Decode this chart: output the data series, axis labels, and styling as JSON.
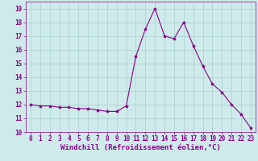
{
  "x": [
    0,
    1,
    2,
    3,
    4,
    5,
    6,
    7,
    8,
    9,
    10,
    11,
    12,
    13,
    14,
    15,
    16,
    17,
    18,
    19,
    20,
    21,
    22,
    23
  ],
  "y": [
    12.0,
    11.9,
    11.9,
    11.8,
    11.8,
    11.7,
    11.7,
    11.6,
    11.5,
    11.5,
    11.9,
    15.5,
    17.5,
    19.0,
    17.0,
    16.8,
    18.0,
    16.3,
    14.8,
    13.5,
    12.9,
    12.0,
    11.3,
    10.3
  ],
  "line_color": "#880088",
  "marker": "*",
  "marker_size": 3,
  "bg_color": "#ceeaea",
  "grid_color": "#aacfcf",
  "xlabel": "Windchill (Refroidissement éolien,°C)",
  "xlabel_fontsize": 6.5,
  "xlim": [
    -0.5,
    23.5
  ],
  "ylim": [
    10,
    19.5
  ],
  "yticks": [
    10,
    11,
    12,
    13,
    14,
    15,
    16,
    17,
    18,
    19
  ],
  "xticks": [
    0,
    1,
    2,
    3,
    4,
    5,
    6,
    7,
    8,
    9,
    10,
    11,
    12,
    13,
    14,
    15,
    16,
    17,
    18,
    19,
    20,
    21,
    22,
    23
  ],
  "tick_fontsize": 5.5,
  "tick_color": "#880088",
  "spine_color": "#880088"
}
